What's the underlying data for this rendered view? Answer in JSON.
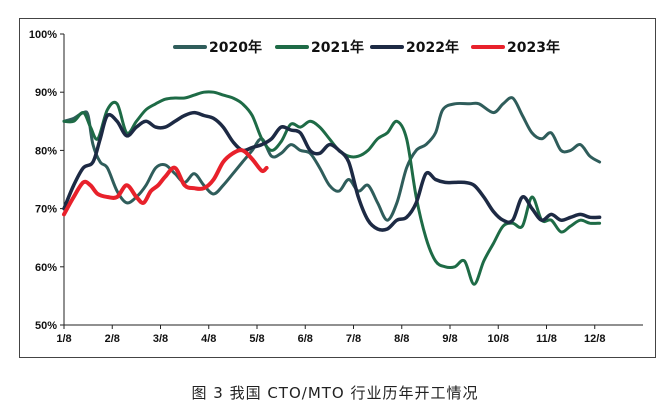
{
  "chart_data": {
    "type": "line",
    "title": "",
    "xlabel": "",
    "ylabel": "",
    "ylim": [
      50,
      100
    ],
    "xlim": [
      0,
      12
    ],
    "y_ticks": [
      "50%",
      "60%",
      "70%",
      "80%",
      "90%",
      "100%"
    ],
    "x_ticks": [
      "1/8",
      "2/8",
      "3/8",
      "4/8",
      "5/8",
      "6/8",
      "7/8",
      "8/8",
      "9/8",
      "10/8",
      "11/8",
      "12/8"
    ],
    "grid": false,
    "legend_position": "top",
    "series": [
      {
        "name": "2020年",
        "color": "#2f5d5b",
        "points": [
          [
            0,
            85
          ],
          [
            0.2,
            85.5
          ],
          [
            0.4,
            86.5
          ],
          [
            0.5,
            86
          ],
          [
            0.6,
            81
          ],
          [
            0.75,
            78
          ],
          [
            0.9,
            77
          ],
          [
            1.1,
            73
          ],
          [
            1.3,
            71
          ],
          [
            1.5,
            72
          ],
          [
            1.7,
            74
          ],
          [
            1.9,
            77
          ],
          [
            2.1,
            77.5
          ],
          [
            2.3,
            76
          ],
          [
            2.5,
            74.5
          ],
          [
            2.7,
            76
          ],
          [
            2.9,
            74
          ],
          [
            3.1,
            72.5
          ],
          [
            3.3,
            74
          ],
          [
            3.5,
            76
          ],
          [
            3.7,
            78
          ],
          [
            3.9,
            80
          ],
          [
            4.1,
            82
          ],
          [
            4.3,
            79
          ],
          [
            4.5,
            79.5
          ],
          [
            4.7,
            81
          ],
          [
            4.9,
            80
          ],
          [
            5.1,
            79.5
          ],
          [
            5.3,
            77
          ],
          [
            5.5,
            74
          ],
          [
            5.7,
            73
          ],
          [
            5.9,
            75
          ],
          [
            6.1,
            73
          ],
          [
            6.3,
            74
          ],
          [
            6.5,
            71
          ],
          [
            6.7,
            68
          ],
          [
            6.9,
            71
          ],
          [
            7.1,
            77
          ],
          [
            7.3,
            80
          ],
          [
            7.5,
            81
          ],
          [
            7.7,
            83
          ],
          [
            7.85,
            87
          ],
          [
            8.1,
            88
          ],
          [
            8.4,
            88
          ],
          [
            8.6,
            88
          ],
          [
            8.9,
            86.5
          ],
          [
            9.1,
            88
          ],
          [
            9.3,
            89
          ],
          [
            9.5,
            86
          ],
          [
            9.7,
            83
          ],
          [
            9.9,
            82
          ],
          [
            10.1,
            83
          ],
          [
            10.3,
            80
          ],
          [
            10.5,
            80
          ],
          [
            10.7,
            81
          ],
          [
            10.9,
            79
          ],
          [
            11.1,
            78
          ]
        ]
      },
      {
        "name": "2021年",
        "color": "#1e6b46",
        "points": [
          [
            0,
            85
          ],
          [
            0.2,
            85
          ],
          [
            0.4,
            86.5
          ],
          [
            0.55,
            84
          ],
          [
            0.7,
            82
          ],
          [
            0.9,
            87
          ],
          [
            1.1,
            88
          ],
          [
            1.3,
            83
          ],
          [
            1.5,
            85
          ],
          [
            1.7,
            87
          ],
          [
            1.9,
            88
          ],
          [
            2.1,
            88.8
          ],
          [
            2.3,
            89
          ],
          [
            2.5,
            89
          ],
          [
            2.7,
            89.5
          ],
          [
            2.9,
            90
          ],
          [
            3.1,
            90
          ],
          [
            3.3,
            89.5
          ],
          [
            3.5,
            89
          ],
          [
            3.7,
            88
          ],
          [
            3.9,
            86
          ],
          [
            4.1,
            82
          ],
          [
            4.3,
            80
          ],
          [
            4.5,
            81.5
          ],
          [
            4.7,
            84.5
          ],
          [
            4.9,
            84
          ],
          [
            5.1,
            85
          ],
          [
            5.3,
            84
          ],
          [
            5.5,
            82
          ],
          [
            5.7,
            80
          ],
          [
            5.9,
            79
          ],
          [
            6.1,
            79
          ],
          [
            6.3,
            80
          ],
          [
            6.5,
            82
          ],
          [
            6.7,
            83
          ],
          [
            6.9,
            85
          ],
          [
            7.1,
            82
          ],
          [
            7.3,
            72
          ],
          [
            7.5,
            65
          ],
          [
            7.7,
            61
          ],
          [
            7.9,
            60
          ],
          [
            8.1,
            60
          ],
          [
            8.3,
            61
          ],
          [
            8.5,
            57
          ],
          [
            8.7,
            61
          ],
          [
            8.9,
            64
          ],
          [
            9.1,
            67
          ],
          [
            9.3,
            67.5
          ],
          [
            9.5,
            67
          ],
          [
            9.7,
            72
          ],
          [
            9.9,
            68
          ],
          [
            10.1,
            68
          ],
          [
            10.3,
            66
          ],
          [
            10.5,
            67
          ],
          [
            10.7,
            68
          ],
          [
            10.9,
            67.5
          ],
          [
            11.1,
            67.5
          ]
        ]
      },
      {
        "name": "2022年",
        "color": "#1d2a44",
        "points": [
          [
            0,
            70
          ],
          [
            0.2,
            74
          ],
          [
            0.4,
            77
          ],
          [
            0.6,
            78
          ],
          [
            0.75,
            82
          ],
          [
            0.9,
            86
          ],
          [
            1.1,
            85
          ],
          [
            1.3,
            82.5
          ],
          [
            1.5,
            84
          ],
          [
            1.7,
            85
          ],
          [
            1.9,
            84
          ],
          [
            2.1,
            84
          ],
          [
            2.3,
            85
          ],
          [
            2.5,
            86
          ],
          [
            2.7,
            86.5
          ],
          [
            2.9,
            86
          ],
          [
            3.1,
            85.5
          ],
          [
            3.3,
            84
          ],
          [
            3.5,
            81.5
          ],
          [
            3.7,
            80
          ],
          [
            3.9,
            80.5
          ],
          [
            4.1,
            81
          ],
          [
            4.3,
            82
          ],
          [
            4.5,
            84
          ],
          [
            4.7,
            83.5
          ],
          [
            4.9,
            83
          ],
          [
            5.1,
            80
          ],
          [
            5.3,
            79.5
          ],
          [
            5.5,
            81
          ],
          [
            5.7,
            80
          ],
          [
            5.9,
            78
          ],
          [
            6.1,
            72
          ],
          [
            6.3,
            68
          ],
          [
            6.5,
            66.5
          ],
          [
            6.7,
            66.5
          ],
          [
            6.9,
            68
          ],
          [
            7.1,
            68.5
          ],
          [
            7.3,
            71
          ],
          [
            7.5,
            76
          ],
          [
            7.7,
            75
          ],
          [
            7.9,
            74.5
          ],
          [
            8.1,
            74.5
          ],
          [
            8.3,
            74.5
          ],
          [
            8.5,
            74
          ],
          [
            8.7,
            72
          ],
          [
            8.9,
            69.5
          ],
          [
            9.1,
            68
          ],
          [
            9.3,
            68
          ],
          [
            9.5,
            72
          ],
          [
            9.7,
            70
          ],
          [
            9.9,
            68
          ],
          [
            10.1,
            69
          ],
          [
            10.3,
            68
          ],
          [
            10.5,
            68.5
          ],
          [
            10.7,
            69
          ],
          [
            10.9,
            68.5
          ],
          [
            11.1,
            68.5
          ]
        ]
      },
      {
        "name": "2023年",
        "color": "#e8212b",
        "points": [
          [
            0,
            69
          ],
          [
            0.2,
            72
          ],
          [
            0.4,
            74.5
          ],
          [
            0.55,
            74
          ],
          [
            0.7,
            72.5
          ],
          [
            0.9,
            72
          ],
          [
            1.1,
            72
          ],
          [
            1.3,
            74
          ],
          [
            1.5,
            72
          ],
          [
            1.65,
            71
          ],
          [
            1.8,
            73
          ],
          [
            1.95,
            74
          ],
          [
            2.1,
            75.5
          ],
          [
            2.3,
            77
          ],
          [
            2.5,
            74
          ],
          [
            2.7,
            73.5
          ],
          [
            2.9,
            73.5
          ],
          [
            3.1,
            75
          ],
          [
            3.3,
            78
          ],
          [
            3.5,
            79.5
          ],
          [
            3.7,
            80
          ],
          [
            3.9,
            78.5
          ],
          [
            4.1,
            76.5
          ],
          [
            4.2,
            77
          ]
        ]
      }
    ]
  },
  "caption": "图 3  我国 CTO/MTO 行业历年开工情况"
}
